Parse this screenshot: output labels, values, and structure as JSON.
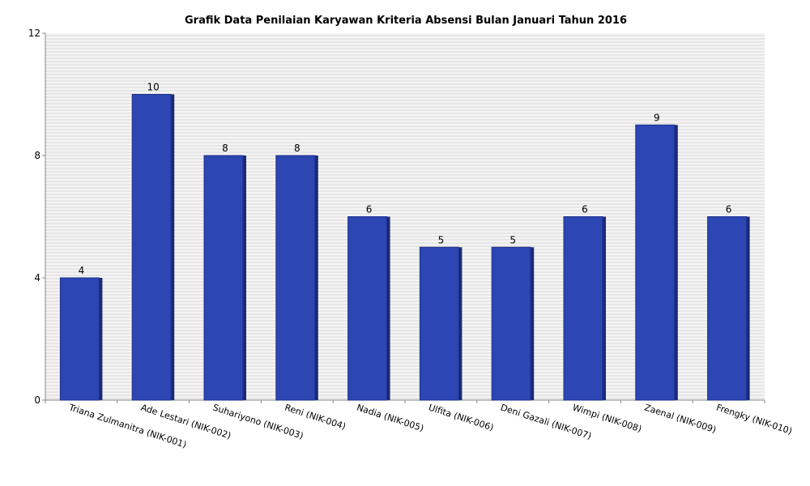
{
  "chart_data": {
    "type": "bar",
    "title": "Grafik Data Penilaian Karyawan Kriteria Absensi Bulan Januari Tahun 2016",
    "xlabel": "",
    "ylabel": "",
    "categories": [
      "Triana Zulmanitra (NIK-001)",
      "Ade Lestari (NIK-002)",
      "Suhariyono (NIK-003)",
      "Reni (NIK-004)",
      "Nadia (NIK-005)",
      "Ulfita (NIK-006)",
      "Deni Gazali (NIK-007)",
      "Wimpi (NIK-008)",
      "Zaenal (NIK-009)",
      "Frengky (NIK-010)"
    ],
    "values": [
      4,
      10,
      8,
      8,
      6,
      5,
      5,
      6,
      9,
      6
    ],
    "ylim": [
      0,
      12
    ],
    "yticks": [
      0,
      4,
      8,
      12
    ],
    "grid": true,
    "colors": {
      "bar": "#2c46b4",
      "bar_shadow": "#1a2a78",
      "grid": "#d8d8d8",
      "plot_bg": "#f4f4f4",
      "axis": "#888888"
    }
  }
}
